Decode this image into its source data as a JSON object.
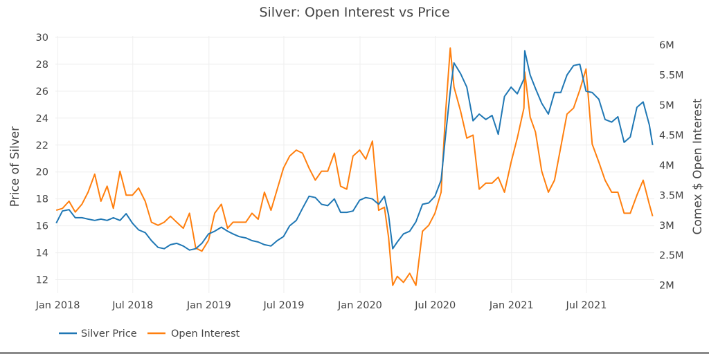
{
  "chart_data": {
    "type": "line",
    "title": "Silver: Open Interest vs Price",
    "xlabel": "",
    "ylabel": "Price of Silver",
    "y2label": "Comex $ Open Interest",
    "ylim": [
      11,
      30.1
    ],
    "y2lim": [
      1.87,
      6.15
    ],
    "y2_unit": "M",
    "xlim": [
      "2017-12-26",
      "2021-12-12"
    ],
    "grid": true,
    "legend": "bottom-left",
    "xticks": [
      {
        "date": "2018-01-01",
        "label": "Jan 2018"
      },
      {
        "date": "2018-07-01",
        "label": "Jul 2018"
      },
      {
        "date": "2019-01-01",
        "label": "Jan 2019"
      },
      {
        "date": "2019-07-01",
        "label": "Jul 2019"
      },
      {
        "date": "2020-01-01",
        "label": "Jan 2020"
      },
      {
        "date": "2020-07-01",
        "label": "Jul 2020"
      },
      {
        "date": "2021-01-01",
        "label": "Jan 2021"
      },
      {
        "date": "2021-07-01",
        "label": "Jul 2021"
      }
    ],
    "yticks": [
      {
        "value": 12,
        "label": "12"
      },
      {
        "value": 14,
        "label": "14"
      },
      {
        "value": 16,
        "label": "16"
      },
      {
        "value": 18,
        "label": "18"
      },
      {
        "value": 20,
        "label": "20"
      },
      {
        "value": 22,
        "label": "22"
      },
      {
        "value": 24,
        "label": "24"
      },
      {
        "value": 26,
        "label": "26"
      },
      {
        "value": 28,
        "label": "28"
      },
      {
        "value": 30,
        "label": "30"
      }
    ],
    "y2ticks": [
      {
        "value": 2,
        "label": "2M"
      },
      {
        "value": 2.5,
        "label": "2.5M"
      },
      {
        "value": 3,
        "label": "3M"
      },
      {
        "value": 3.5,
        "label": "3.5M"
      },
      {
        "value": 4,
        "label": "4M"
      },
      {
        "value": 4.5,
        "label": "4.5M"
      },
      {
        "value": 5,
        "label": "5M"
      },
      {
        "value": 5.5,
        "label": "5.5M"
      },
      {
        "value": 6,
        "label": "6M"
      }
    ],
    "x": [
      "2017-12-28",
      "2018-01-12",
      "2018-01-28",
      "2018-02-12",
      "2018-02-28",
      "2018-03-15",
      "2018-03-31",
      "2018-04-15",
      "2018-04-30",
      "2018-05-15",
      "2018-05-31",
      "2018-06-15",
      "2018-06-30",
      "2018-07-15",
      "2018-07-31",
      "2018-08-15",
      "2018-08-31",
      "2018-09-15",
      "2018-09-30",
      "2018-10-15",
      "2018-10-31",
      "2018-11-15",
      "2018-11-30",
      "2018-12-15",
      "2018-12-31",
      "2019-01-15",
      "2019-01-31",
      "2019-02-15",
      "2019-02-28",
      "2019-03-15",
      "2019-03-31",
      "2019-04-15",
      "2019-04-30",
      "2019-05-15",
      "2019-05-31",
      "2019-06-15",
      "2019-06-30",
      "2019-07-15",
      "2019-07-31",
      "2019-08-15",
      "2019-08-31",
      "2019-09-15",
      "2019-09-30",
      "2019-10-15",
      "2019-10-31",
      "2019-11-15",
      "2019-11-30",
      "2019-12-15",
      "2019-12-31",
      "2020-01-15",
      "2020-01-31",
      "2020-02-15",
      "2020-02-29",
      "2020-03-10",
      "2020-03-20",
      "2020-03-31",
      "2020-04-15",
      "2020-04-30",
      "2020-05-15",
      "2020-05-31",
      "2020-06-15",
      "2020-06-30",
      "2020-07-15",
      "2020-07-25",
      "2020-08-06",
      "2020-08-15",
      "2020-08-31",
      "2020-09-15",
      "2020-09-30",
      "2020-10-15",
      "2020-10-31",
      "2020-11-15",
      "2020-11-30",
      "2020-12-15",
      "2020-12-31",
      "2021-01-15",
      "2021-01-31",
      "2021-02-02",
      "2021-02-15",
      "2021-02-28",
      "2021-03-15",
      "2021-03-31",
      "2021-04-15",
      "2021-04-30",
      "2021-05-15",
      "2021-05-31",
      "2021-06-15",
      "2021-06-30",
      "2021-07-15",
      "2021-07-31",
      "2021-08-15",
      "2021-08-31",
      "2021-09-15",
      "2021-09-30",
      "2021-10-15",
      "2021-10-31",
      "2021-11-15",
      "2021-11-30",
      "2021-12-08"
    ],
    "series": [
      {
        "name": "Silver Price",
        "axis": "left",
        "color": "#1f77b4",
        "values": [
          16.2,
          17.1,
          17.2,
          16.6,
          16.6,
          16.5,
          16.4,
          16.5,
          16.4,
          16.6,
          16.4,
          16.9,
          16.2,
          15.7,
          15.5,
          14.9,
          14.4,
          14.3,
          14.6,
          14.7,
          14.5,
          14.2,
          14.3,
          14.7,
          15.4,
          15.6,
          15.9,
          15.6,
          15.4,
          15.2,
          15.1,
          14.9,
          14.8,
          14.6,
          14.5,
          14.9,
          15.2,
          16.0,
          16.4,
          17.3,
          18.2,
          18.1,
          17.6,
          17.5,
          18.0,
          17.0,
          17.0,
          17.1,
          17.9,
          18.1,
          18.0,
          17.6,
          18.2,
          16.8,
          14.3,
          14.8,
          15.4,
          15.6,
          16.3,
          17.6,
          17.7,
          18.2,
          19.4,
          22.5,
          26.0,
          28.1,
          27.3,
          26.3,
          23.8,
          24.3,
          23.9,
          24.2,
          22.8,
          25.6,
          26.3,
          25.8,
          26.9,
          29.0,
          27.2,
          26.2,
          25.1,
          24.3,
          25.9,
          25.9,
          27.2,
          27.9,
          28.0,
          26.0,
          25.9,
          25.4,
          23.9,
          23.7,
          24.1,
          22.2,
          22.6,
          24.8,
          25.2,
          23.5,
          22.0
        ]
      },
      {
        "name": "Open Interest",
        "axis": "right",
        "color": "#ff7f0e",
        "values": [
          3.25,
          3.28,
          3.4,
          3.22,
          3.35,
          3.55,
          3.85,
          3.4,
          3.65,
          3.28,
          3.9,
          3.5,
          3.5,
          3.62,
          3.4,
          3.05,
          3.0,
          3.05,
          3.15,
          3.05,
          2.95,
          3.2,
          2.62,
          2.57,
          2.75,
          3.2,
          3.35,
          2.95,
          3.05,
          3.05,
          3.05,
          3.2,
          3.1,
          3.55,
          3.25,
          3.6,
          3.95,
          4.15,
          4.25,
          4.2,
          3.95,
          3.75,
          3.9,
          3.9,
          4.2,
          3.65,
          3.6,
          4.15,
          4.25,
          4.1,
          4.4,
          3.25,
          3.3,
          2.8,
          2.0,
          2.15,
          2.05,
          2.2,
          2.0,
          2.9,
          3.0,
          3.2,
          3.55,
          4.8,
          5.95,
          5.3,
          4.9,
          4.45,
          4.5,
          3.6,
          3.7,
          3.7,
          3.8,
          3.55,
          4.05,
          4.45,
          4.95,
          5.55,
          4.8,
          4.55,
          3.9,
          3.55,
          3.75,
          4.3,
          4.85,
          4.95,
          5.25,
          5.6,
          4.35,
          4.05,
          3.75,
          3.55,
          3.55,
          3.2,
          3.2,
          3.5,
          3.75,
          3.35,
          3.15
        ]
      }
    ]
  }
}
